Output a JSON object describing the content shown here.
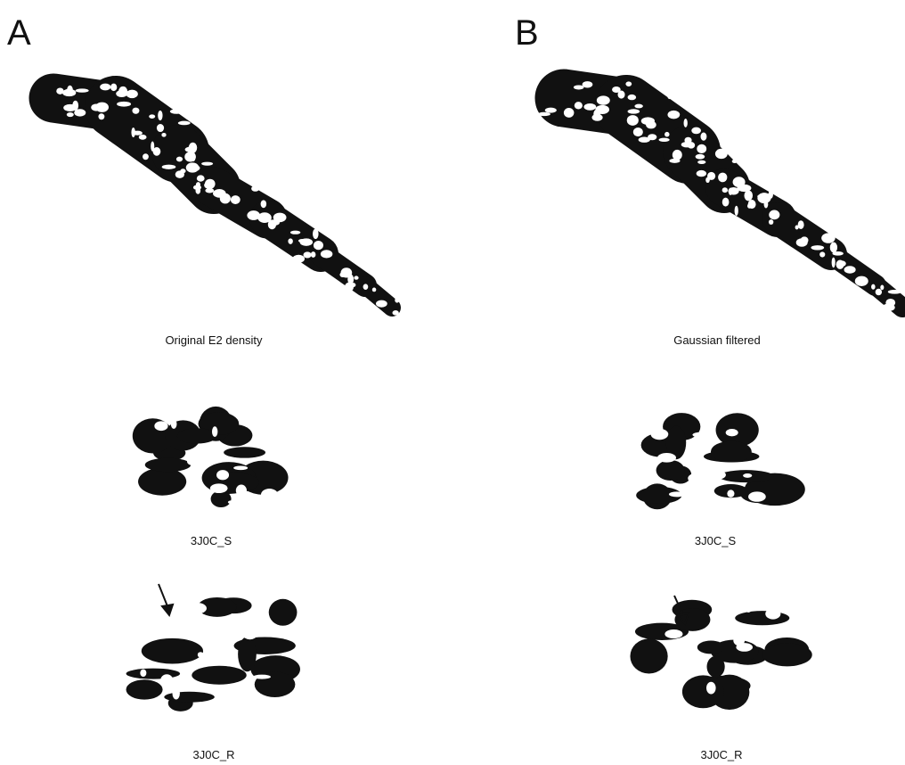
{
  "panels": [
    {
      "label": "A",
      "main_caption": "Original E2 density",
      "sub_captions": [
        "3J0C_S",
        "3J0C_R"
      ]
    },
    {
      "label": "B",
      "main_caption": "Gaussian filtered",
      "sub_captions": [
        "3J0C_S",
        "3J0C_R"
      ]
    }
  ]
}
